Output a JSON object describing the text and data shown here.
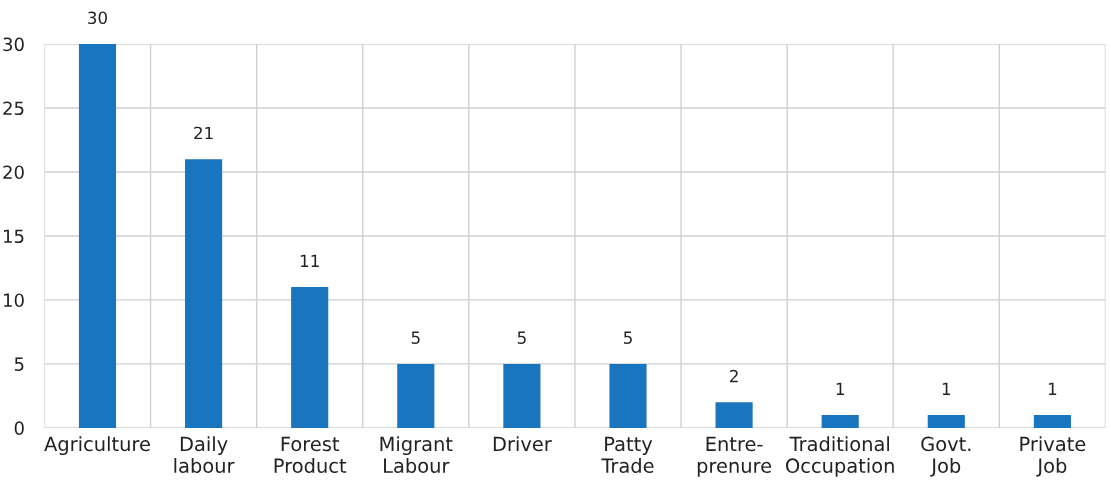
{
  "chart_data": {
    "type": "bar",
    "categories": [
      "Agriculture",
      "Daily\nlabour",
      "Forest\nProduct",
      "Migrant\nLabour",
      "Driver",
      "Patty\nTrade",
      "Entre-\nprenure",
      "Traditional\nOccupation",
      "Govt.\nJob",
      "Private\nJob"
    ],
    "values": [
      30,
      21,
      11,
      5,
      5,
      5,
      2,
      1,
      1,
      1
    ],
    "color": "#1a75bf",
    "ylim": [
      0,
      30
    ],
    "yticks": [
      0,
      5,
      10,
      15,
      20,
      25,
      30
    ],
    "grid": true,
    "data_labels": true
  }
}
